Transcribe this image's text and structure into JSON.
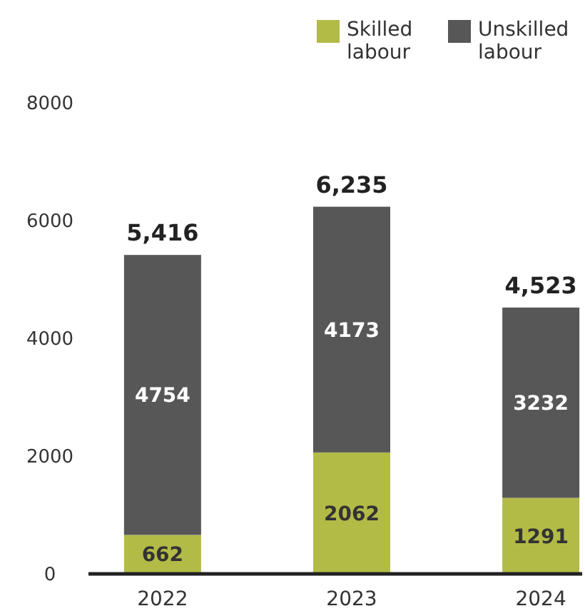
{
  "chart_data": {
    "type": "bar",
    "stacked": true,
    "categories": [
      "2022",
      "2023",
      "2024"
    ],
    "series": [
      {
        "name": "Skilled labour",
        "color": "#b3bb47",
        "values": [
          662,
          2062,
          1291
        ]
      },
      {
        "name": "Unskilled labour",
        "color": "#575757",
        "values": [
          4754,
          4173,
          3232
        ]
      }
    ],
    "ylim": [
      0,
      8000
    ],
    "yticks": [
      0,
      2000,
      4000,
      6000,
      8000
    ],
    "grid": false,
    "legend": "top",
    "data_labels": true,
    "totals": [
      "5,416",
      "6,235",
      "4,523"
    ]
  }
}
